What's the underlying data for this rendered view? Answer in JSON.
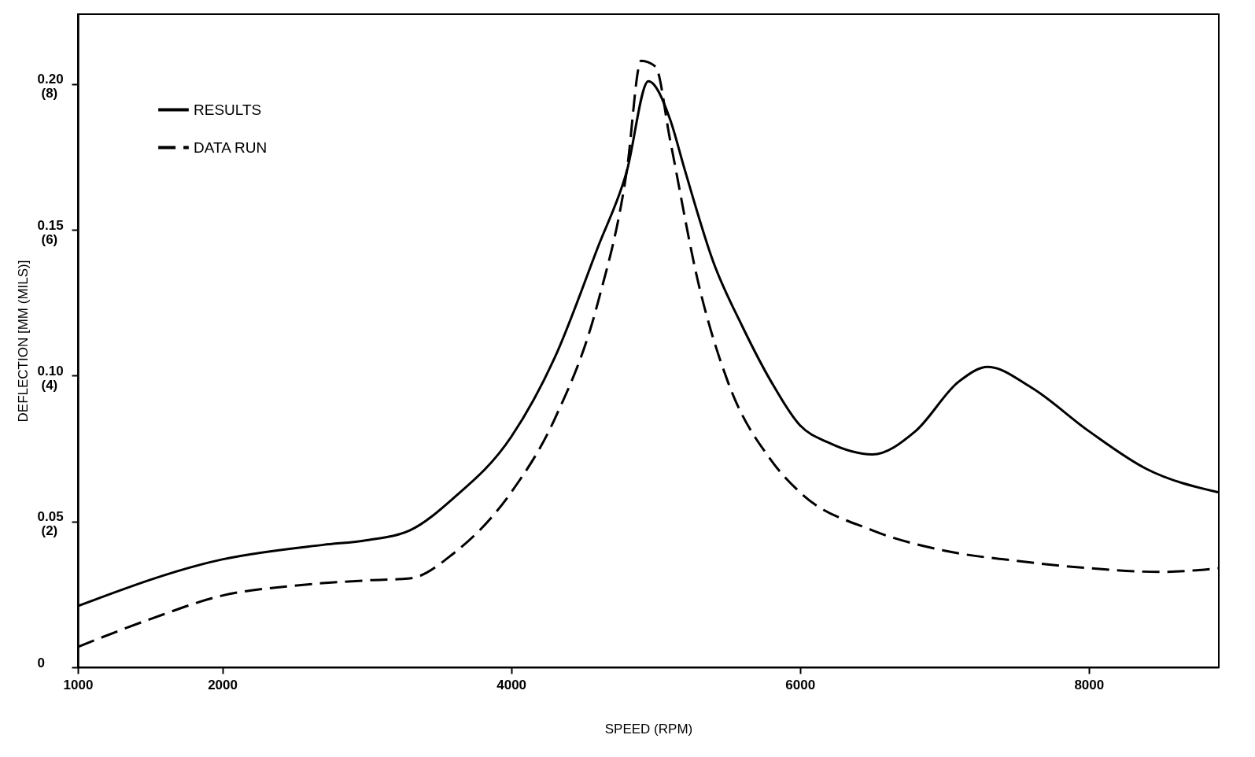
{
  "chart_data": {
    "type": "line",
    "xlabel": "SPEED (RPM)",
    "y2label": "DEFLECTION [MM (MILS)]",
    "xlim": [
      1000,
      8900
    ],
    "ylim": [
      0,
      0.224
    ],
    "xticks": [
      1000,
      2000,
      4000,
      6000,
      8000
    ],
    "yticks": [
      0,
      0.05,
      {
        "value": 0.1,
        "label": "0.10"
      },
      0.15,
      {
        "value": 0.2,
        "label": "0.20"
      }
    ],
    "y2lim": [
      0,
      8.96
    ],
    "y2ticks": [
      {
        "value": 2,
        "label": "(2)"
      },
      {
        "value": 4,
        "label": "(4)"
      },
      {
        "value": 6,
        "label": "(6)"
      },
      {
        "value": 8,
        "label": "(8)"
      }
    ],
    "grid": false,
    "legend": "top left",
    "marker": "none",
    "series": [
      {
        "name": "RESULTS",
        "color": "#000000",
        "line_style": "solid",
        "x": [
          1000,
          2000,
          2700,
          3000,
          3300,
          3600,
          4000,
          4300,
          4600,
          4800,
          4950,
          5100,
          5200,
          5400,
          5600,
          5800,
          6000,
          6200,
          6500,
          6800,
          7100,
          7300,
          7600,
          8000,
          8400,
          8900
        ],
        "values": [
          0.021,
          0.037,
          0.042,
          0.0436,
          0.047,
          0.058,
          0.079,
          0.106,
          0.144,
          0.17,
          0.201,
          0.188,
          0.171,
          0.139,
          0.117,
          0.098,
          0.083,
          0.077,
          0.073,
          0.081,
          0.098,
          0.103,
          0.096,
          0.081,
          0.068,
          0.06
        ]
      },
      {
        "name": "DATA RUN",
        "color": "#000000",
        "line_style": "dashed",
        "x": [
          1000,
          1500,
          2000,
          2500,
          3000,
          3300,
          3600,
          4000,
          4300,
          4600,
          4800,
          4900,
          5000,
          5100,
          5300,
          5500,
          5800,
          6000,
          6500,
          7000,
          7500,
          8000,
          8500,
          8900
        ],
        "values": [
          0.007,
          0.0165,
          0.0246,
          0.028,
          0.0298,
          0.0305,
          0.039,
          0.06,
          0.085,
          0.125,
          0.17,
          0.208,
          0.206,
          0.181,
          0.131,
          0.098,
          0.071,
          0.06,
          0.047,
          0.04,
          0.0365,
          0.034,
          0.0327,
          0.034
        ]
      }
    ]
  }
}
